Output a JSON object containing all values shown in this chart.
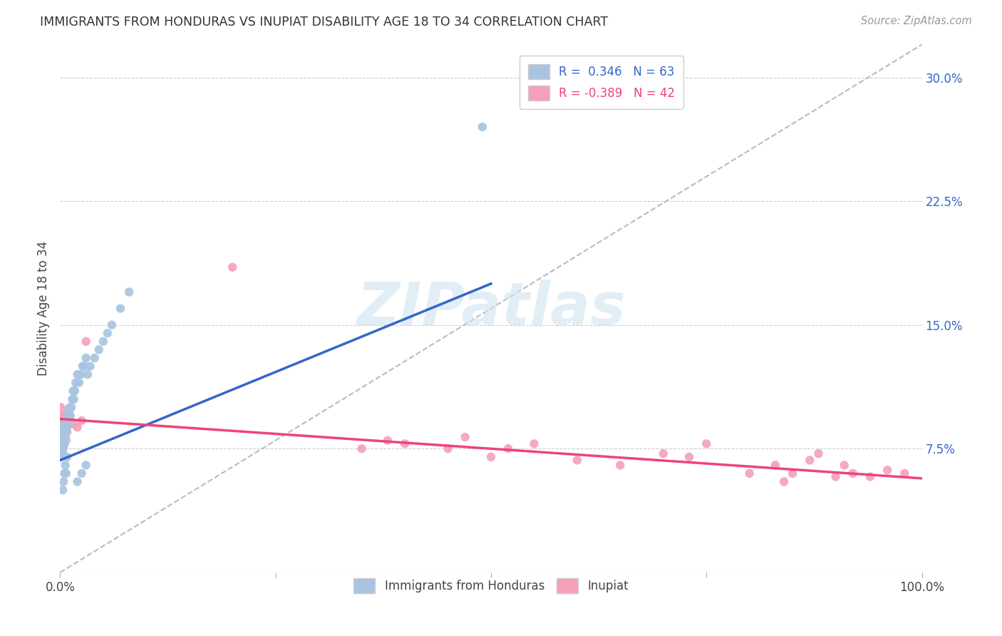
{
  "title": "IMMIGRANTS FROM HONDURAS VS INUPIAT DISABILITY AGE 18 TO 34 CORRELATION CHART",
  "source": "Source: ZipAtlas.com",
  "ylabel": "Disability Age 18 to 34",
  "xlim": [
    0,
    1.0
  ],
  "ylim": [
    0,
    0.32
  ],
  "blue_color": "#a8c4e0",
  "pink_color": "#f4a0b8",
  "blue_line_color": "#3366cc",
  "pink_line_color": "#ee4477",
  "dashed_line_color": "#bbbbbb",
  "legend_blue_R": "0.346",
  "legend_blue_N": "63",
  "legend_pink_R": "-0.389",
  "legend_pink_N": "42",
  "watermark_text": "ZIPatlas",
  "blue_scatter_x": [
    0.001,
    0.001,
    0.001,
    0.001,
    0.001,
    0.002,
    0.002,
    0.002,
    0.002,
    0.003,
    0.003,
    0.003,
    0.003,
    0.004,
    0.004,
    0.004,
    0.005,
    0.005,
    0.005,
    0.006,
    0.006,
    0.007,
    0.007,
    0.007,
    0.008,
    0.008,
    0.009,
    0.009,
    0.01,
    0.01,
    0.011,
    0.012,
    0.013,
    0.014,
    0.015,
    0.016,
    0.017,
    0.018,
    0.02,
    0.022,
    0.024,
    0.026,
    0.028,
    0.03,
    0.032,
    0.035,
    0.04,
    0.045,
    0.05,
    0.055,
    0.06,
    0.07,
    0.08,
    0.02,
    0.025,
    0.03,
    0.003,
    0.004,
    0.005,
    0.006,
    0.007,
    0.008,
    0.49
  ],
  "blue_scatter_y": [
    0.08,
    0.075,
    0.082,
    0.07,
    0.078,
    0.085,
    0.072,
    0.08,
    0.076,
    0.088,
    0.082,
    0.078,
    0.074,
    0.086,
    0.08,
    0.076,
    0.09,
    0.084,
    0.078,
    0.088,
    0.082,
    0.092,
    0.086,
    0.08,
    0.094,
    0.088,
    0.096,
    0.09,
    0.098,
    0.092,
    0.1,
    0.095,
    0.1,
    0.105,
    0.11,
    0.105,
    0.11,
    0.115,
    0.12,
    0.115,
    0.12,
    0.125,
    0.125,
    0.13,
    0.12,
    0.125,
    0.13,
    0.135,
    0.14,
    0.145,
    0.15,
    0.16,
    0.17,
    0.055,
    0.06,
    0.065,
    0.05,
    0.055,
    0.06,
    0.065,
    0.06,
    0.07,
    0.27
  ],
  "pink_scatter_x": [
    0.001,
    0.001,
    0.002,
    0.002,
    0.003,
    0.003,
    0.004,
    0.005,
    0.006,
    0.007,
    0.008,
    0.01,
    0.015,
    0.02,
    0.025,
    0.03,
    0.2,
    0.35,
    0.38,
    0.4,
    0.45,
    0.47,
    0.5,
    0.52,
    0.55,
    0.6,
    0.65,
    0.7,
    0.73,
    0.75,
    0.8,
    0.83,
    0.84,
    0.85,
    0.87,
    0.88,
    0.9,
    0.91,
    0.92,
    0.94,
    0.96,
    0.98
  ],
  "pink_scatter_y": [
    0.09,
    0.1,
    0.085,
    0.095,
    0.08,
    0.09,
    0.085,
    0.095,
    0.088,
    0.092,
    0.085,
    0.095,
    0.09,
    0.088,
    0.092,
    0.14,
    0.185,
    0.075,
    0.08,
    0.078,
    0.075,
    0.082,
    0.07,
    0.075,
    0.078,
    0.068,
    0.065,
    0.072,
    0.07,
    0.078,
    0.06,
    0.065,
    0.055,
    0.06,
    0.068,
    0.072,
    0.058,
    0.065,
    0.06,
    0.058,
    0.062,
    0.06
  ],
  "blue_trend_x": [
    0.0,
    0.5
  ],
  "blue_trend_y": [
    0.068,
    0.175
  ],
  "pink_trend_x": [
    0.0,
    1.0
  ],
  "pink_trend_y": [
    0.093,
    0.057
  ],
  "dashed_line_x": [
    0.0,
    1.0
  ],
  "dashed_line_y": [
    0.0,
    0.32
  ]
}
